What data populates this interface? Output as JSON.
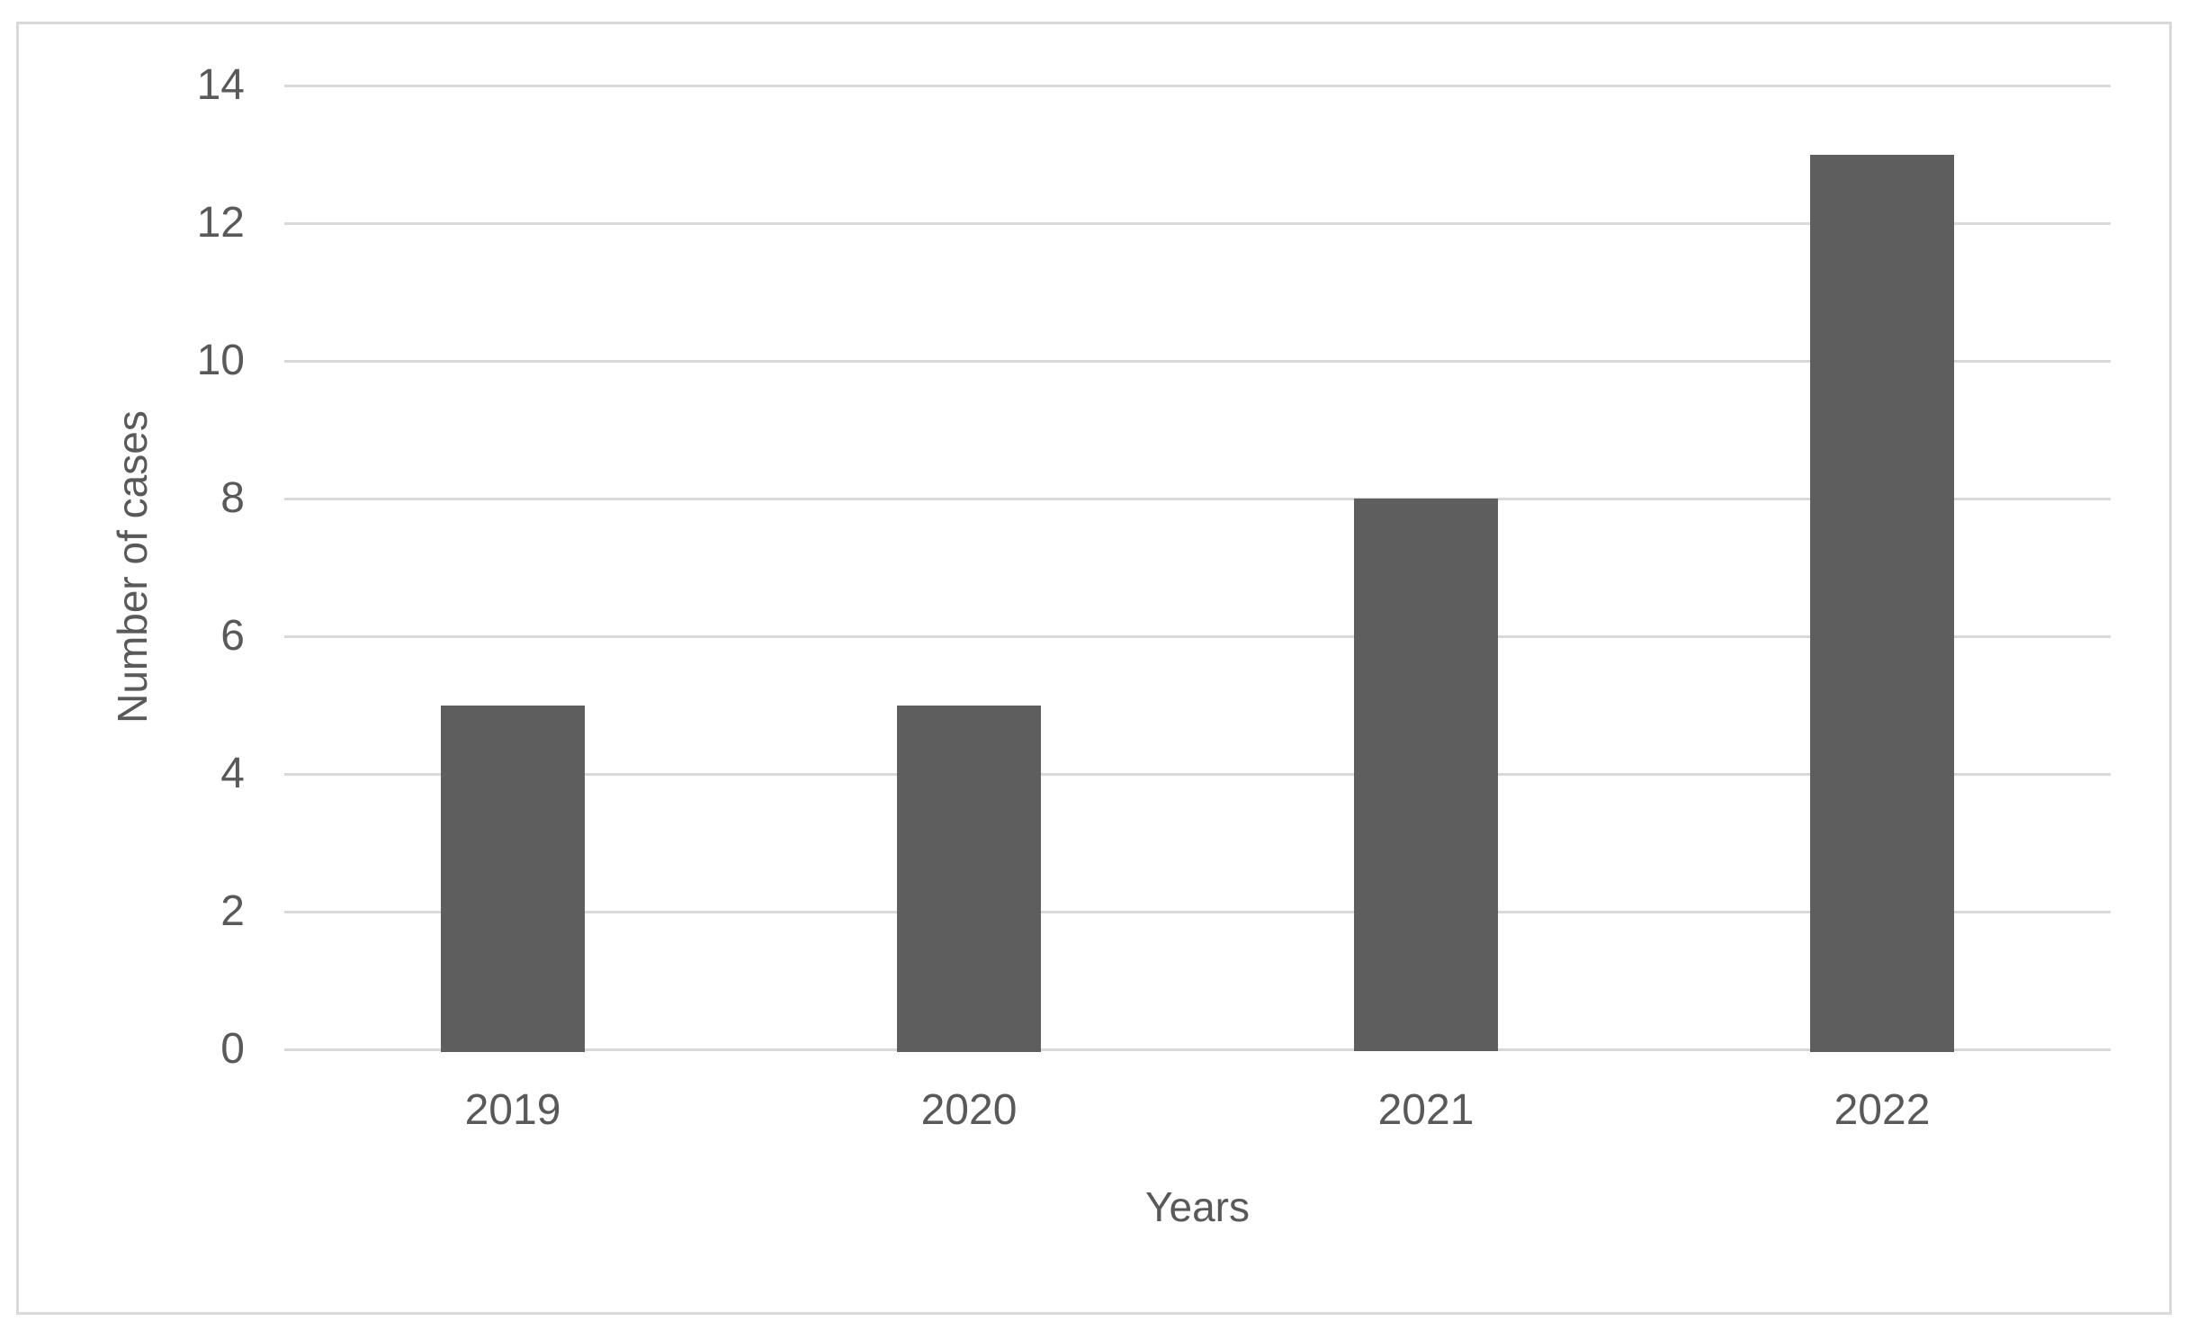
{
  "chart_data": {
    "type": "bar",
    "title": "",
    "categories": [
      "2019",
      "2020",
      "2021",
      "2022"
    ],
    "values": [
      5,
      5,
      8,
      13
    ],
    "xlabel": "Years",
    "ylabel": "Number of cases",
    "ylim": [
      0,
      14
    ],
    "yticks": [
      0,
      2,
      4,
      6,
      8,
      10,
      12,
      14
    ],
    "grid": "horizontal",
    "legend": "none",
    "bar_color": "#5e5e5e",
    "gridline_color": "#d9d9d9",
    "frame_color": "#d9d9d9",
    "text_color": "#595959",
    "background_color": "#ffffff"
  }
}
